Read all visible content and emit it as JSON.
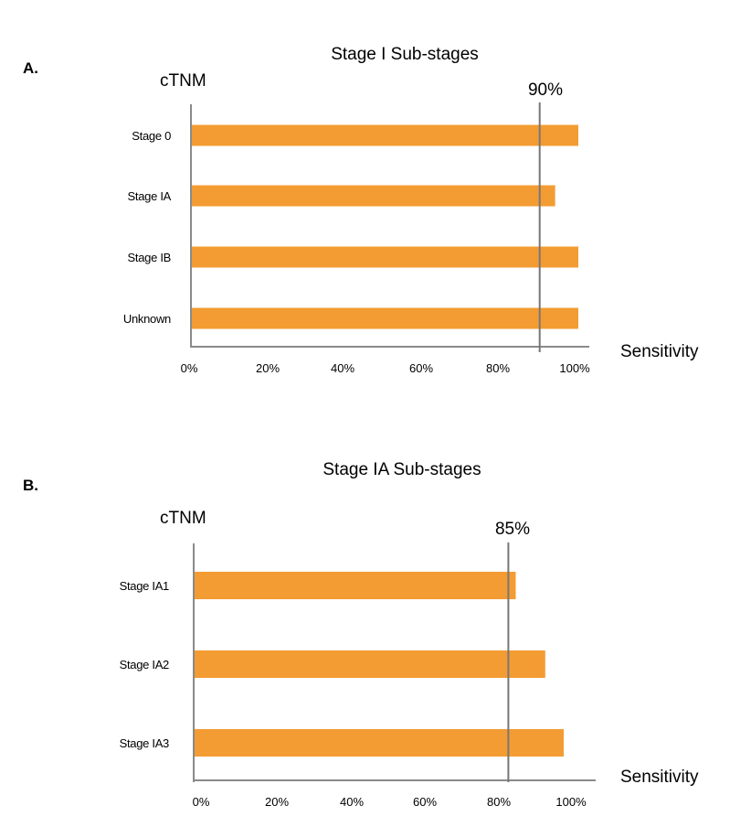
{
  "chart_data": [
    {
      "type": "bar",
      "orientation": "horizontal",
      "panel_label": "A.",
      "title": "Stage I Sub-stages",
      "ylabel": "cTNM",
      "xlabel": "Sensitivity",
      "categories": [
        "Stage 0",
        "Stage IA",
        "Stage IB",
        "Unknown"
      ],
      "category_labels_shown": [
        "Stage 0",
        "Stage IA",
        "Stage IB",
        "Unknown"
      ],
      "values": [
        100,
        94,
        100,
        100
      ],
      "xlim": [
        0,
        100
      ],
      "xticks": [
        "0%",
        "20%",
        "40%",
        "60%",
        "80%",
        "100%"
      ],
      "reference_line": {
        "value": 90,
        "label": "90%"
      },
      "bar_color": "#f39c33",
      "grid": false,
      "legend": "none"
    },
    {
      "type": "bar",
      "orientation": "horizontal",
      "panel_label": "B.",
      "title": "Stage IA Sub-stages",
      "ylabel": "cTNM",
      "xlabel": "Sensitivity",
      "categories": [
        "Stage IA1",
        "Stage IA2",
        "Stage IA3"
      ],
      "category_labels_shown": [
        "Stage IA1",
        "Stage IA2",
        "Stage IA3"
      ],
      "values": [
        87,
        95,
        100
      ],
      "xlim": [
        0,
        100
      ],
      "xticks": [
        "0%",
        "20%",
        "40%",
        "60%",
        "80%",
        "100%"
      ],
      "reference_line": {
        "value": 85,
        "label": "85%"
      },
      "bar_color": "#f39c33",
      "grid": false,
      "legend": "none"
    }
  ]
}
